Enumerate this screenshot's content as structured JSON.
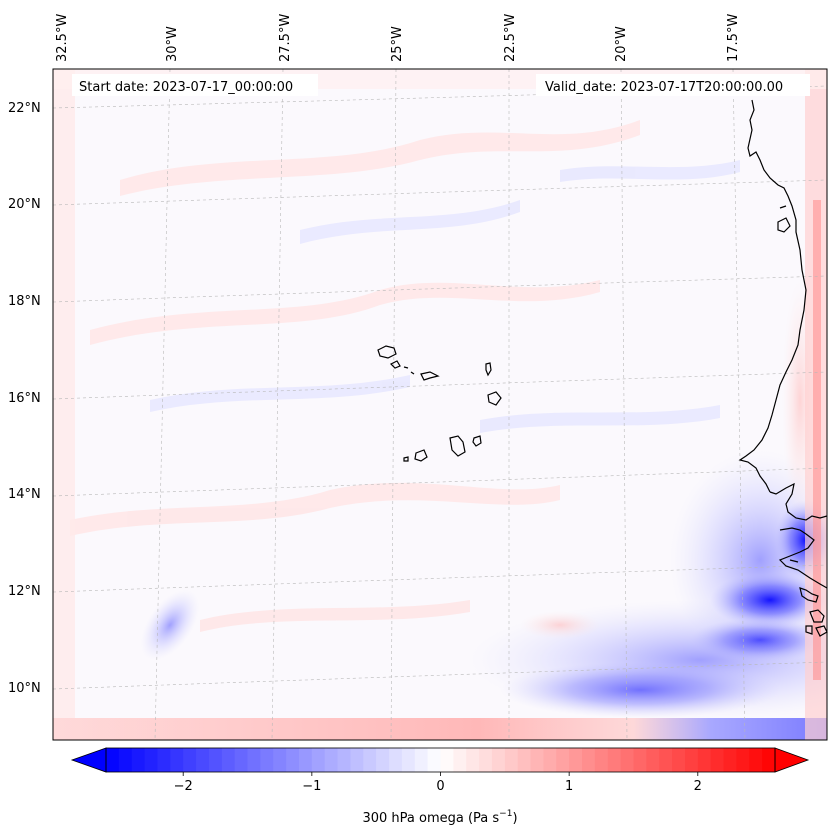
{
  "map": {
    "start_label": "Start date: 2023-07-17_00:00:00",
    "valid_label": "Valid_date: 2023-07-17T20:00:00.00",
    "lon_labels": [
      "32.5°W",
      "30°W",
      "27.5°W",
      "25°W",
      "22.5°W",
      "20°W",
      "17.5°W"
    ],
    "lat_labels": [
      "22°N",
      "20°N",
      "18°N",
      "16°N",
      "14°N",
      "12°N",
      "10°N"
    ],
    "field": "300 hPa omega"
  },
  "colorbar": {
    "label_main": "300 hPa omega (Pa s",
    "label_sup": "−1",
    "label_end": ")",
    "ticks": [
      "−2",
      "−1",
      "0",
      "1",
      "2"
    ],
    "tick_values": [
      -2,
      -1,
      0,
      1,
      2
    ],
    "vmin": -2.6,
    "vmax": 2.6,
    "extend": "both",
    "colormap": "bwr",
    "color_min": "#0000ff",
    "color_mid": "#ffffff",
    "color_max": "#ff0000"
  }
}
